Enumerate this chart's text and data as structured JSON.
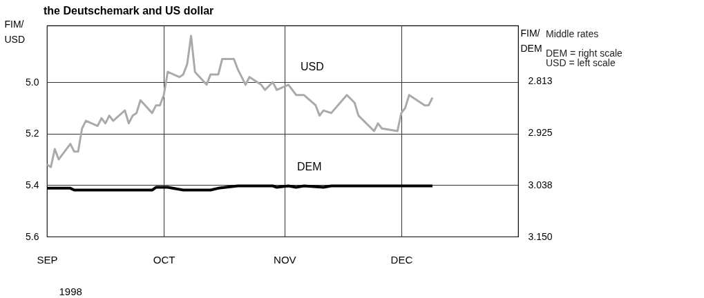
{
  "chart_data": {
    "type": "line",
    "title": "the Deutschemark and US dollar",
    "xlabel": "1998",
    "ylabel": "FIM/\nUSD",
    "y2label": "FIM/\nDEM",
    "annotations": [
      "Middle rates",
      "DEM = right scale\nUSD = left scale"
    ],
    "xlim": [
      "1998-09-01",
      "1998-12-31"
    ],
    "xticks": [
      {
        "value": "1998-09-01",
        "label": "SEP"
      },
      {
        "value": "1998-10-01",
        "label": "OCT"
      },
      {
        "value": "1998-11-01",
        "label": "NOV"
      },
      {
        "value": "1998-12-01",
        "label": "DEC"
      }
    ],
    "ylim": [
      5.6,
      4.78
    ],
    "yticks": [
      {
        "value": 5.0,
        "label": "5.0"
      },
      {
        "value": 5.2,
        "label": "5.2"
      },
      {
        "value": 5.4,
        "label": "5.4"
      },
      {
        "value": 5.6,
        "label": "5.6"
      }
    ],
    "y2lim": [
      3.15,
      2.692
    ],
    "y2ticks": [
      {
        "value": 2.813,
        "label": "2.813"
      },
      {
        "value": 2.925,
        "label": "2.925"
      },
      {
        "value": 3.038,
        "label": "3.038"
      },
      {
        "value": 3.15,
        "label": "3.150"
      }
    ],
    "grid": true,
    "series": [
      {
        "name": "USD",
        "color": "#aaaaaa",
        "x": [
          "1998-09-01",
          "1998-09-02",
          "1998-09-03",
          "1998-09-04",
          "1998-09-07",
          "1998-09-08",
          "1998-09-09",
          "1998-09-10",
          "1998-09-11",
          "1998-09-14",
          "1998-09-15",
          "1998-09-16",
          "1998-09-17",
          "1998-09-18",
          "1998-09-21",
          "1998-09-22",
          "1998-09-23",
          "1998-09-24",
          "1998-09-25",
          "1998-09-28",
          "1998-09-29",
          "1998-09-30",
          "1998-10-01",
          "1998-10-02",
          "1998-10-05",
          "1998-10-06",
          "1998-10-07",
          "1998-10-08",
          "1998-10-09",
          "1998-10-12",
          "1998-10-13",
          "1998-10-15",
          "1998-10-16",
          "1998-10-19",
          "1998-10-20",
          "1998-10-22",
          "1998-10-23",
          "1998-10-26",
          "1998-10-27",
          "1998-10-29",
          "1998-10-30",
          "1998-11-02",
          "1998-11-04",
          "1998-11-06",
          "1998-11-09",
          "1998-11-10",
          "1998-11-11",
          "1998-11-13",
          "1998-11-17",
          "1998-11-19",
          "1998-11-20",
          "1998-11-24",
          "1998-11-25",
          "1998-11-26",
          "1998-11-30",
          "1998-12-01",
          "1998-12-02",
          "1998-12-03",
          "1998-12-07",
          "1998-12-08",
          "1998-12-09"
        ],
        "values": [
          5.32,
          5.33,
          5.26,
          5.3,
          5.24,
          5.27,
          5.27,
          5.18,
          5.15,
          5.17,
          5.14,
          5.16,
          5.13,
          5.15,
          5.11,
          5.16,
          5.13,
          5.12,
          5.07,
          5.12,
          5.09,
          5.09,
          5.05,
          4.96,
          4.98,
          4.97,
          4.93,
          4.82,
          4.96,
          5.01,
          4.97,
          4.97,
          4.91,
          4.91,
          4.95,
          5.01,
          4.98,
          5.01,
          5.03,
          5.0,
          5.03,
          5.01,
          5.05,
          5.05,
          5.09,
          5.13,
          5.11,
          5.12,
          5.05,
          5.08,
          5.13,
          5.19,
          5.16,
          5.18,
          5.19,
          5.12,
          5.1,
          5.05,
          5.09,
          5.09,
          5.06
        ]
      },
      {
        "name": "DEM",
        "color": "#000000",
        "axis": "y2",
        "x": [
          "1998-09-01",
          "1998-09-07",
          "1998-09-08",
          "1998-09-28",
          "1998-09-29",
          "1998-10-02",
          "1998-10-06",
          "1998-10-13",
          "1998-10-15",
          "1998-10-20",
          "1998-10-29",
          "1998-10-30",
          "1998-11-02",
          "1998-11-04",
          "1998-11-06",
          "1998-11-11",
          "1998-11-13",
          "1998-12-09"
        ],
        "values": [
          3.045,
          3.045,
          3.049,
          3.049,
          3.043,
          3.043,
          3.049,
          3.049,
          3.045,
          3.04,
          3.04,
          3.043,
          3.04,
          3.043,
          3.04,
          3.043,
          3.04,
          3.04
        ]
      }
    ]
  }
}
